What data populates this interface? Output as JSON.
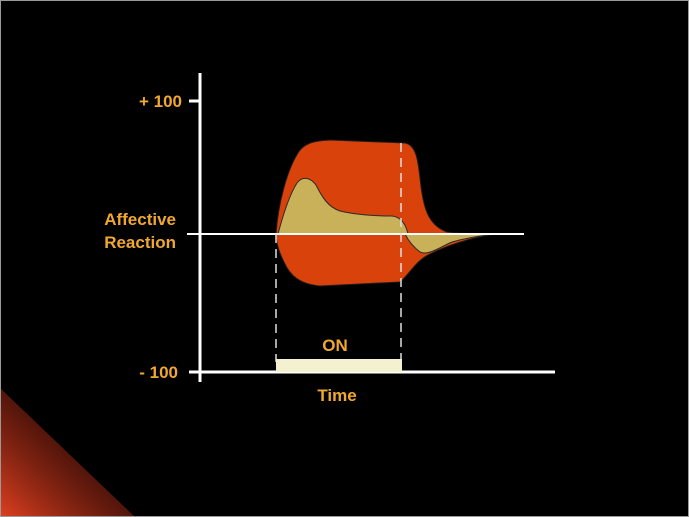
{
  "diagram": {
    "y_axis": {
      "top_tick_label": "+ 100",
      "bottom_tick_label": "- 100",
      "label_line1": "Affective",
      "label_line2": "Reaction"
    },
    "x_axis": {
      "label": "Time"
    },
    "stimulus": {
      "label": "ON"
    }
  },
  "colors": {
    "background": "#000000",
    "axes": "#FFFFFF",
    "label_text": "#F0A830",
    "outer_region": "#D9420B",
    "inner_region": "#C9B15A",
    "stimulus_bar": "#F3F1CF",
    "corner_glow": "#E04020",
    "frame": "#9A9A9A"
  }
}
